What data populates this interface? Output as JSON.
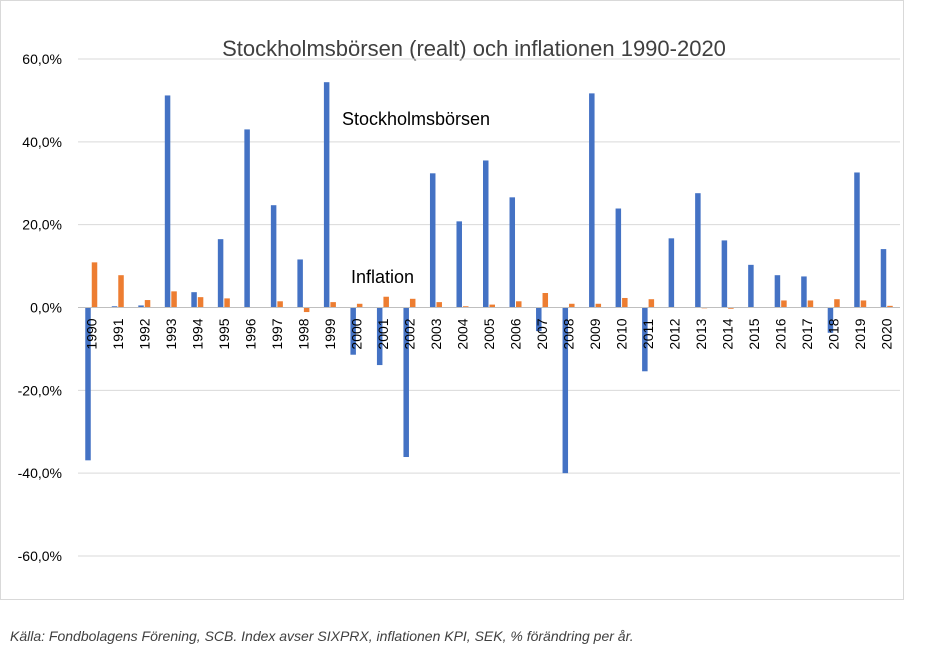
{
  "caption": "Källa: Fondbolagens Förening, SCB. Index avser SIXPRX, inflationen KPI, SEK, % förändring per år.",
  "colors": {
    "stock": "#4472c4",
    "inflation": "#ed7d31",
    "grid": "#d9d9d9",
    "axis": "#bfbfbf",
    "text": "#000000",
    "title": "#404040"
  },
  "chart_data": {
    "type": "bar",
    "title": "Stockholmsbörsen (realt) och inflationen 1990-2020",
    "xlabel": "",
    "ylabel": "",
    "ylim": [
      -60,
      60
    ],
    "yticks": [
      60,
      40,
      20,
      0,
      -20,
      -40,
      -60
    ],
    "ytick_labels": [
      "60,0%",
      "40,0%",
      "20,0%",
      "0,0%",
      "-20,0%",
      "-40,0%",
      "-60,0%"
    ],
    "grid": true,
    "legend": "none",
    "categories": [
      "1990",
      "1991",
      "1992",
      "1993",
      "1994",
      "1995",
      "1996",
      "1997",
      "1998",
      "1999",
      "2000",
      "2001",
      "2002",
      "2003",
      "2004",
      "2005",
      "2006",
      "2007",
      "2008",
      "2009",
      "2010",
      "2011",
      "2012",
      "2013",
      "2014",
      "2015",
      "2016",
      "2017",
      "2018",
      "2019",
      "2020"
    ],
    "series": [
      {
        "name": "Stockholmsbörsen",
        "values": [
          -36.9,
          0.3,
          0.5,
          51.2,
          3.7,
          16.5,
          43.0,
          24.7,
          11.6,
          54.4,
          -11.4,
          -13.9,
          -36.1,
          32.4,
          20.8,
          35.5,
          26.6,
          -5.7,
          -40.0,
          51.7,
          23.9,
          -15.4,
          16.7,
          27.6,
          16.2,
          10.3,
          7.8,
          7.5,
          -6.1,
          32.6,
          14.1
        ]
      },
      {
        "name": "Inflation",
        "values": [
          10.9,
          7.8,
          1.8,
          3.9,
          2.5,
          2.2,
          0.1,
          1.5,
          -1.1,
          1.3,
          0.9,
          2.6,
          2.1,
          1.3,
          0.3,
          0.7,
          1.5,
          3.5,
          0.9,
          0.9,
          2.3,
          2.0,
          0.0,
          -0.1,
          -0.3,
          0.1,
          1.7,
          1.7,
          2.0,
          1.7,
          0.4
        ]
      }
    ],
    "annotations": [
      "Stockholmsbörsen",
      "Inflation"
    ]
  }
}
